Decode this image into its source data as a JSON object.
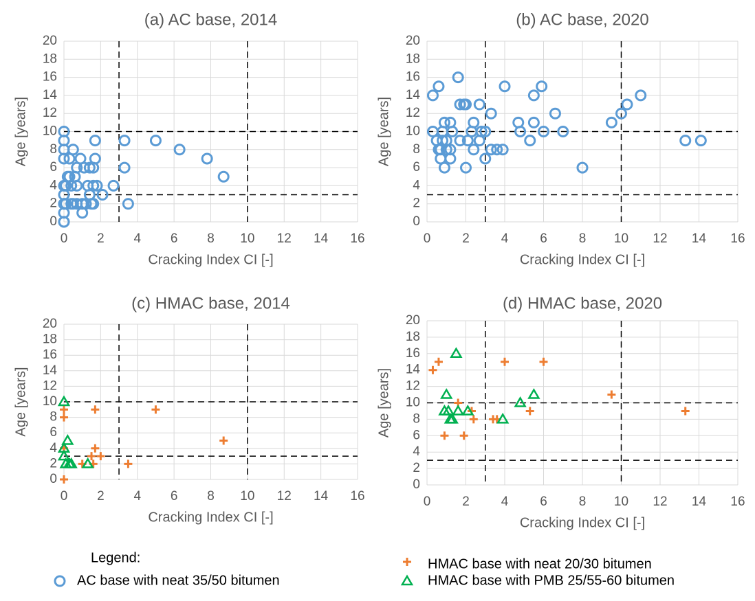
{
  "legend_title": "Legend:",
  "chart_data": [
    {
      "type": "scatter",
      "title": "(a) AC base, 2014",
      "x_label": "Cracking Index  CI [-]",
      "y_label": "Age [years]",
      "xlim": [
        0,
        16
      ],
      "ylim": [
        0,
        20
      ],
      "xticks": [
        0,
        2,
        4,
        6,
        8,
        10,
        12,
        14,
        16
      ],
      "yticks": [
        0,
        2,
        4,
        6,
        8,
        10,
        12,
        14,
        16,
        18,
        20
      ],
      "grid": true,
      "ref_x": [
        3,
        10
      ],
      "ref_y": [
        3,
        10
      ],
      "series": [
        {
          "name": "AC base with neat 35/50 bitumen",
          "color": "#5b9bd5",
          "marker": "circle",
          "x": [
            0,
            0,
            0,
            0,
            0,
            0.1,
            0,
            0,
            0.1,
            0,
            0,
            0,
            0,
            0.2,
            0.3,
            0.3,
            0.4,
            0.4,
            0.5,
            0.5,
            0.6,
            0.7,
            0.7,
            0.7,
            0.9,
            1,
            1,
            1.1,
            1.2,
            1.3,
            1.4,
            1.4,
            1.5,
            1.6,
            1.6,
            1.6,
            1.7,
            1.7,
            1.8,
            2.1,
            2.7,
            3.3,
            3.3,
            3.5,
            5,
            6.3,
            7.8,
            8.7
          ],
          "y": [
            0,
            0,
            1,
            2,
            2,
            2,
            3,
            4,
            4,
            7,
            8,
            9,
            10,
            5,
            5,
            7,
            4,
            2,
            2,
            8,
            5,
            4,
            6,
            2,
            7,
            2,
            1,
            6,
            2,
            4,
            3,
            6,
            2,
            2,
            6,
            4,
            7,
            9,
            4,
            3,
            4,
            9,
            6,
            2,
            9,
            8,
            7,
            5
          ]
        }
      ]
    },
    {
      "type": "scatter",
      "title": "(b) AC base, 2020",
      "x_label": "Cracking Index  CI [-]",
      "y_label": "Age [years]",
      "xlim": [
        0,
        16
      ],
      "ylim": [
        0,
        20
      ],
      "xticks": [
        0,
        2,
        4,
        6,
        8,
        10,
        12,
        14,
        16
      ],
      "yticks": [
        0,
        2,
        4,
        6,
        8,
        10,
        12,
        14,
        16,
        18,
        20
      ],
      "grid": true,
      "ref_x": [
        3,
        10
      ],
      "ref_y": [
        3,
        10
      ],
      "series": [
        {
          "name": "AC base with neat 35/50 bitumen",
          "color": "#5b9bd5",
          "marker": "circle",
          "x": [
            0.3,
            0.3,
            0.6,
            0.5,
            0.6,
            0.7,
            0.7,
            0.8,
            0.8,
            0.9,
            0.9,
            1,
            1,
            1.2,
            1.2,
            1.2,
            1.3,
            1.6,
            1.7,
            1.7,
            1.9,
            2,
            2,
            2.1,
            2.3,
            2.4,
            2.4,
            2.7,
            2.7,
            2.8,
            3,
            3,
            3.3,
            3.3,
            3.6,
            3.9,
            4,
            4.7,
            4.8,
            5.3,
            5.5,
            5.5,
            5.9,
            6,
            6.6,
            7,
            8,
            9.5,
            10,
            10.3,
            11,
            13.3,
            14.1
          ],
          "y": [
            10,
            14,
            15,
            9,
            8,
            7,
            8,
            9,
            10,
            11,
            6,
            8,
            9,
            7,
            11,
            8,
            10,
            16,
            9,
            13,
            13,
            6,
            13,
            9,
            10,
            8,
            11,
            13,
            9,
            10,
            7,
            10,
            12,
            8,
            8,
            8,
            15,
            11,
            10,
            9,
            11,
            14,
            15,
            10,
            12,
            10,
            6,
            11,
            12,
            13,
            14,
            9,
            9
          ]
        }
      ]
    },
    {
      "type": "scatter",
      "title": "(c) HMAC base, 2014",
      "x_label": "Cracking Index  CI [-]",
      "y_label": "Age [years]",
      "xlim": [
        0,
        16
      ],
      "ylim": [
        0,
        20
      ],
      "xticks": [
        0,
        2,
        4,
        6,
        8,
        10,
        12,
        14,
        16
      ],
      "yticks": [
        0,
        2,
        4,
        6,
        8,
        10,
        12,
        14,
        16,
        18,
        20
      ],
      "grid": true,
      "ref_x": [
        3,
        10
      ],
      "ref_y": [
        3,
        10
      ],
      "series": [
        {
          "name": "HMAC base with neat 20/30 bitumen",
          "color": "#ed7d31",
          "marker": "plus",
          "x": [
            0,
            0,
            0,
            1.7,
            5,
            8.7,
            1.7,
            2,
            1.5,
            1,
            1.6,
            3.5,
            0
          ],
          "y": [
            0,
            8,
            9,
            9,
            9,
            5,
            4,
            3,
            3,
            2,
            2,
            2,
            4
          ]
        },
        {
          "name": "HMAC base with PMB 25/55-60 bitumen",
          "color": "#00b050",
          "marker": "triangle",
          "x": [
            0,
            0.2,
            0,
            0,
            0.1,
            0.3,
            0.4,
            1.3
          ],
          "y": [
            10,
            5,
            4,
            3,
            2,
            2,
            2,
            2
          ]
        }
      ]
    },
    {
      "type": "scatter",
      "title": "(d) HMAC base, 2020",
      "x_label": "Cracking Index  CI [-]",
      "y_label": "Age [years]",
      "xlim": [
        0,
        16
      ],
      "ylim": [
        0,
        20
      ],
      "xticks": [
        0,
        2,
        4,
        6,
        8,
        10,
        12,
        14,
        16
      ],
      "yticks": [
        0,
        2,
        4,
        6,
        8,
        10,
        12,
        14,
        16,
        18,
        20
      ],
      "grid": true,
      "ref_x": [
        3,
        10
      ],
      "ref_y": [
        3,
        10
      ],
      "series": [
        {
          "name": "HMAC base with neat 20/30 bitumen",
          "color": "#ed7d31",
          "marker": "plus",
          "x": [
            0.3,
            0.6,
            0.9,
            1.6,
            1.9,
            2.3,
            2.4,
            3.4,
            3.6,
            4,
            5.3,
            6,
            9.5,
            13.3
          ],
          "y": [
            14,
            15,
            6,
            10,
            6,
            9,
            8,
            8,
            8,
            15,
            9,
            15,
            11,
            9
          ]
        },
        {
          "name": "HMAC base with PMB 25/55-60 bitumen",
          "color": "#00b050",
          "marker": "triangle",
          "x": [
            0.9,
            1,
            1.1,
            1.2,
            1.3,
            1.5,
            1.6,
            2.1,
            3.9,
            4.8,
            5.5
          ],
          "y": [
            9,
            11,
            9,
            8,
            8,
            16,
            9,
            9,
            8,
            10,
            11
          ]
        }
      ]
    }
  ]
}
